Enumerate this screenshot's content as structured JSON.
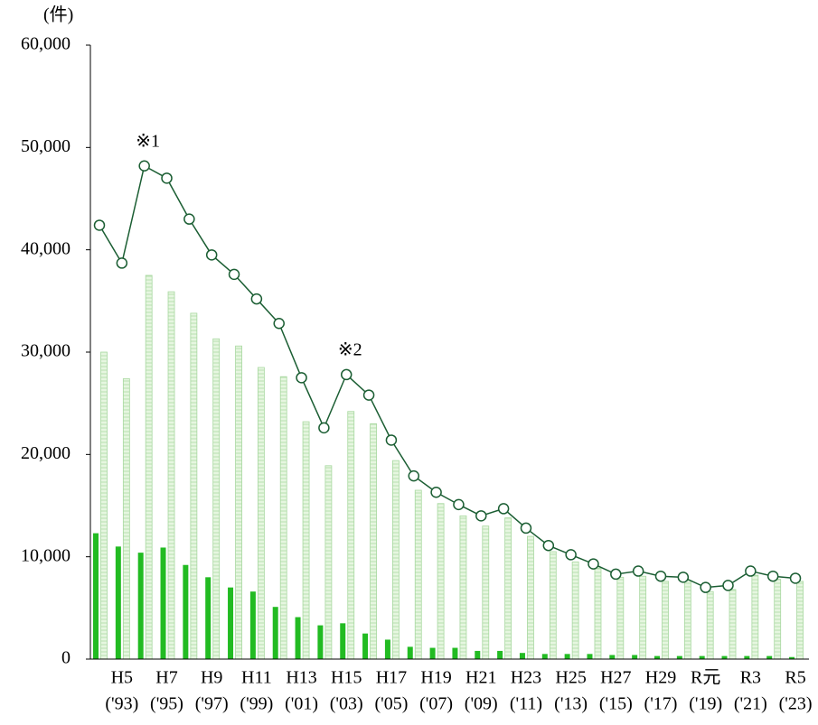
{
  "chart_data": {
    "type": "bar_line",
    "y_unit_label": "(件)",
    "categories": [
      null,
      "H5",
      null,
      "H7",
      null,
      "H9",
      null,
      "H11",
      null,
      "H13",
      null,
      "H15",
      null,
      "H17",
      null,
      "H19",
      null,
      "H21",
      null,
      "H23",
      null,
      "H25",
      null,
      "H27",
      null,
      "H29",
      null,
      "R元",
      null,
      "R3",
      null,
      "R5"
    ],
    "category_sublabels": [
      null,
      "('93)",
      null,
      "('95)",
      null,
      "('97)",
      null,
      "('99)",
      null,
      "('01)",
      null,
      "('03)",
      null,
      "('05)",
      null,
      "('07)",
      null,
      "('09)",
      null,
      "('11)",
      null,
      "('13)",
      null,
      "('15)",
      null,
      "('17)",
      null,
      "('19)",
      null,
      "('21)",
      null,
      "('23)"
    ],
    "series": [
      {
        "kind": "bar",
        "color": "#22bb22",
        "values": [
          12300,
          11000,
          10400,
          10900,
          9200,
          8000,
          7000,
          6600,
          5100,
          4100,
          3300,
          3500,
          2500,
          1900,
          1200,
          1100,
          1100,
          800,
          800,
          600,
          500,
          500,
          500,
          400,
          400,
          300,
          300,
          300,
          300,
          300,
          300,
          200
        ]
      },
      {
        "kind": "bar",
        "color": "#d8f0d0",
        "values": [
          30000,
          27400,
          37500,
          35900,
          33800,
          31300,
          30600,
          28500,
          27600,
          23200,
          18900,
          24200,
          23000,
          19400,
          16500,
          15200,
          14000,
          13000,
          13800,
          12000,
          10500,
          9500,
          8900,
          8000,
          8100,
          7600,
          7700,
          6600,
          6800,
          8200,
          7800,
          7600
        ]
      },
      {
        "kind": "line",
        "color": "#1b5e33",
        "values": [
          42400,
          38700,
          48200,
          47000,
          43000,
          39500,
          37600,
          35200,
          32800,
          27500,
          22600,
          27800,
          25800,
          21400,
          17900,
          16300,
          15100,
          14000,
          14700,
          12800,
          11100,
          10200,
          9300,
          8300,
          8600,
          8100,
          8000,
          7000,
          7200,
          8600,
          8100,
          7900
        ]
      }
    ],
    "annotations": [
      {
        "index": 2,
        "text": "※1"
      },
      {
        "index": 11,
        "text": "※2"
      }
    ],
    "ylim": [
      0,
      60000
    ],
    "yticks": [
      0,
      {
        "value": 10000,
        "label": "10,000"
      },
      {
        "value": 20000,
        "label": "20,000"
      },
      {
        "value": 30000,
        "label": "30,000"
      },
      {
        "value": 40000,
        "label": "40,000"
      },
      {
        "value": 50000,
        "label": "50,000"
      },
      {
        "value": 60000,
        "label": "60,000"
      }
    ]
  }
}
